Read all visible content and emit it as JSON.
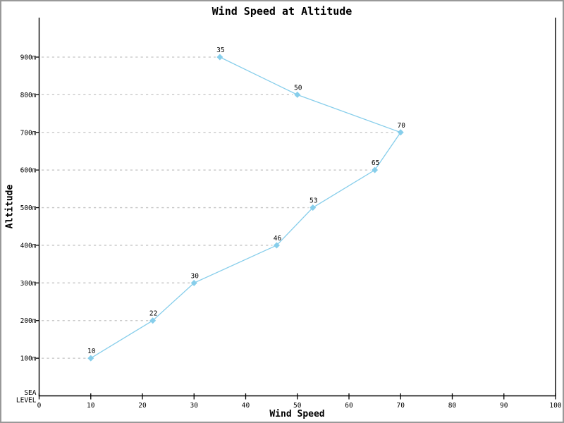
{
  "window": {
    "background": "#ffffff",
    "border_color": "#999999"
  },
  "chart_data": {
    "type": "line",
    "title": "Wind Speed at Altitude",
    "xlabel": "Wind Speed",
    "ylabel": "Altitude",
    "legend_position": "none",
    "grid": {
      "style": "dashed",
      "color": "#c4c4c4",
      "note": "horizontal dashed leader line from y-axis to each data point"
    },
    "axis_color": "#000000",
    "text_color": "#000000",
    "x_axis": {
      "range": [
        0,
        100
      ],
      "ticks": [
        0,
        10,
        20,
        30,
        40,
        50,
        60,
        70,
        80,
        90,
        100
      ]
    },
    "y_axis": {
      "unit": "m",
      "range_m": [
        0,
        900
      ],
      "ticks": [
        {
          "m": 0,
          "lines": [
            "SEA",
            "LEVEL"
          ]
        },
        {
          "m": 100,
          "lines": [
            "100m"
          ]
        },
        {
          "m": 200,
          "lines": [
            "200m"
          ]
        },
        {
          "m": 300,
          "lines": [
            "300m"
          ]
        },
        {
          "m": 400,
          "lines": [
            "400m"
          ]
        },
        {
          "m": 500,
          "lines": [
            "500m"
          ]
        },
        {
          "m": 600,
          "lines": [
            "600m"
          ]
        },
        {
          "m": 700,
          "lines": [
            "700m"
          ]
        },
        {
          "m": 800,
          "lines": [
            "800m"
          ]
        },
        {
          "m": 900,
          "lines": [
            "900m"
          ]
        }
      ]
    },
    "series": [
      {
        "name": "Wind Speed",
        "color": "#87CEEB",
        "marker": "diamond",
        "points": [
          {
            "speed": 10,
            "altitude_m": 100,
            "label": "10"
          },
          {
            "speed": 22,
            "altitude_m": 200,
            "label": "22"
          },
          {
            "speed": 30,
            "altitude_m": 300,
            "label": "30"
          },
          {
            "speed": 46,
            "altitude_m": 400,
            "label": "46"
          },
          {
            "speed": 53,
            "altitude_m": 500,
            "label": "53"
          },
          {
            "speed": 65,
            "altitude_m": 600,
            "label": "65"
          },
          {
            "speed": 70,
            "altitude_m": 700,
            "label": "70"
          },
          {
            "speed": 50,
            "altitude_m": 800,
            "label": "50"
          },
          {
            "speed": 35,
            "altitude_m": 900,
            "label": "35"
          }
        ]
      }
    ]
  }
}
